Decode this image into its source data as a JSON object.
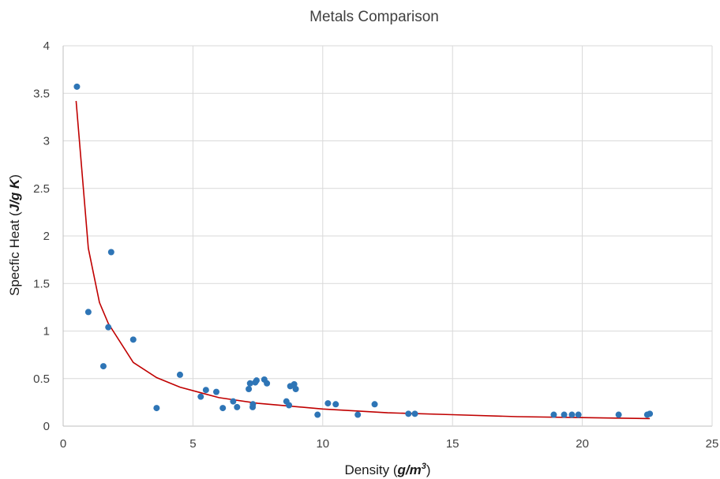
{
  "chart_data": {
    "type": "scatter",
    "title": "Metals Comparison",
    "xlabel": {
      "prefix": "Density (",
      "unit": "g/m",
      "sup": "3",
      "suffix": ")"
    },
    "ylabel": {
      "prefix": "Specfic Heat (",
      "unit": "J/g K",
      "suffix": ")"
    },
    "xlim": [
      0,
      25
    ],
    "ylim": [
      0,
      4
    ],
    "xticks": [
      "0",
      "5",
      "10",
      "15",
      "20",
      "25"
    ],
    "yticks": [
      "0",
      "0.5",
      "1",
      "1.5",
      "2",
      "2.5",
      "3",
      "3.5",
      "4"
    ],
    "grid": true,
    "legend": "none",
    "colors": {
      "points": "#2e75b6",
      "trend": "#c00000"
    },
    "series": [
      {
        "points": [
          [
            0.53,
            3.57
          ],
          [
            0.97,
            1.2
          ],
          [
            1.55,
            0.63
          ],
          [
            1.74,
            1.04
          ],
          [
            1.85,
            1.83
          ],
          [
            2.7,
            0.91
          ],
          [
            3.6,
            0.19
          ],
          [
            4.5,
            0.54
          ],
          [
            5.3,
            0.31
          ],
          [
            5.5,
            0.38
          ],
          [
            5.9,
            0.36
          ],
          [
            6.15,
            0.19
          ],
          [
            6.55,
            0.26
          ],
          [
            6.7,
            0.2
          ],
          [
            7.15,
            0.39
          ],
          [
            7.2,
            0.45
          ],
          [
            7.3,
            0.2
          ],
          [
            7.31,
            0.23
          ],
          [
            7.4,
            0.46
          ],
          [
            7.45,
            0.48
          ],
          [
            7.75,
            0.49
          ],
          [
            7.85,
            0.45
          ],
          [
            8.6,
            0.26
          ],
          [
            8.7,
            0.22
          ],
          [
            8.75,
            0.42
          ],
          [
            8.9,
            0.44
          ],
          [
            8.96,
            0.39
          ],
          [
            9.8,
            0.12
          ],
          [
            10.2,
            0.24
          ],
          [
            10.5,
            0.23
          ],
          [
            11.35,
            0.12
          ],
          [
            12.0,
            0.23
          ],
          [
            13.3,
            0.13
          ],
          [
            13.55,
            0.13
          ],
          [
            18.9,
            0.12
          ],
          [
            19.3,
            0.12
          ],
          [
            19.6,
            0.12
          ],
          [
            19.85,
            0.12
          ],
          [
            21.4,
            0.12
          ],
          [
            22.5,
            0.12
          ],
          [
            22.6,
            0.13
          ]
        ]
      }
    ],
    "trendline": [
      [
        0.5,
        3.42
      ],
      [
        0.97,
        1.87
      ],
      [
        1.4,
        1.3
      ],
      [
        1.74,
        1.08
      ],
      [
        2.7,
        0.67
      ],
      [
        3.6,
        0.51
      ],
      [
        4.5,
        0.41
      ],
      [
        6.0,
        0.3
      ],
      [
        7.5,
        0.24
      ],
      [
        10.0,
        0.18
      ],
      [
        12.5,
        0.14
      ],
      [
        15.0,
        0.12
      ],
      [
        17.5,
        0.1
      ],
      [
        20.0,
        0.09
      ],
      [
        22.6,
        0.08
      ]
    ]
  }
}
